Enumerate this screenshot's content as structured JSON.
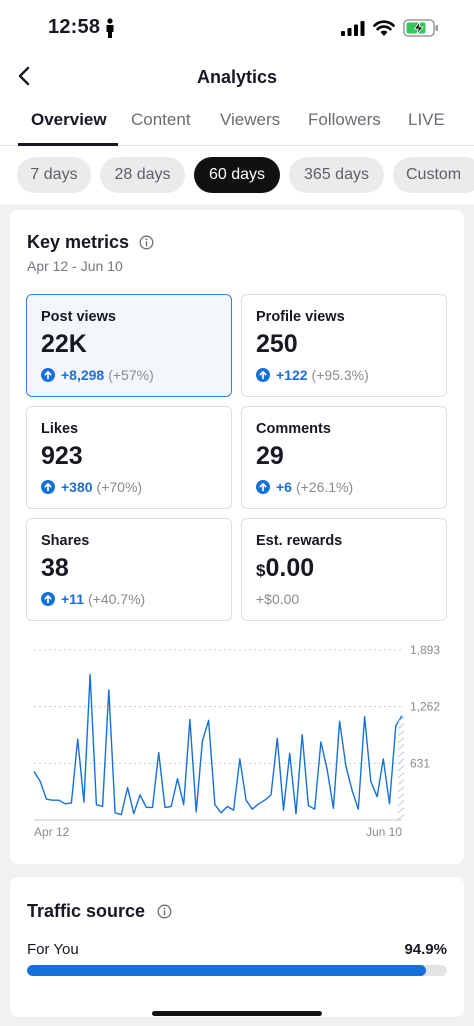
{
  "status_bar": {
    "time": "12:58",
    "battery_color": "#34c759"
  },
  "nav": {
    "title": "Analytics"
  },
  "tabs": [
    {
      "label": "Overview",
      "active": true
    },
    {
      "label": "Content",
      "active": false
    },
    {
      "label": "Viewers",
      "active": false
    },
    {
      "label": "Followers",
      "active": false
    },
    {
      "label": "LIVE",
      "active": false
    }
  ],
  "ranges": [
    {
      "label": "7 days",
      "active": false
    },
    {
      "label": "28 days",
      "active": false
    },
    {
      "label": "60 days",
      "active": true
    },
    {
      "label": "365 days",
      "active": false
    },
    {
      "label": "Custom",
      "active": false
    }
  ],
  "key_metrics": {
    "title": "Key metrics",
    "date_range": "Apr 12 - Jun 10",
    "metrics": [
      {
        "label": "Post views",
        "value": "22K",
        "change": "+8,298",
        "pct": "(+57%)"
      },
      {
        "label": "Profile views",
        "value": "250",
        "change": "+122",
        "pct": "(+95.3%)"
      },
      {
        "label": "Likes",
        "value": "923",
        "change": "+380",
        "pct": "(+70%)"
      },
      {
        "label": "Comments",
        "value": "29",
        "change": "+6",
        "pct": "(+26.1%)"
      },
      {
        "label": "Shares",
        "value": "38",
        "change": "+11",
        "pct": "(+40.7%)"
      },
      {
        "label": "Est. rewards",
        "currency": "$",
        "amount": "0.00",
        "change": "+$0.00"
      }
    ]
  },
  "chart_data": {
    "type": "line",
    "series_color": "#1670d9",
    "x_start_label": "Apr 12",
    "x_end_label": "Jun 10",
    "y_ticks": [
      1893,
      1262,
      631
    ],
    "y_tick_labels": [
      "1,893",
      "1,262",
      "631"
    ],
    "ylim": [
      0,
      1893
    ],
    "values": [
      540,
      430,
      230,
      220,
      220,
      180,
      190,
      900,
      200,
      1620,
      170,
      150,
      1450,
      80,
      60,
      360,
      70,
      280,
      140,
      140,
      750,
      140,
      150,
      460,
      170,
      1120,
      90,
      880,
      1110,
      170,
      80,
      150,
      110,
      680,
      220,
      120,
      180,
      220,
      280,
      910,
      110,
      740,
      70,
      950,
      160,
      120,
      870,
      560,
      130,
      1100,
      600,
      330,
      120,
      1150,
      430,
      260,
      680,
      180,
      1050,
      1160
    ]
  },
  "traffic_source": {
    "title": "Traffic source",
    "rows": [
      {
        "label": "For You",
        "value": "94.9%",
        "fraction": 0.949
      }
    ]
  }
}
